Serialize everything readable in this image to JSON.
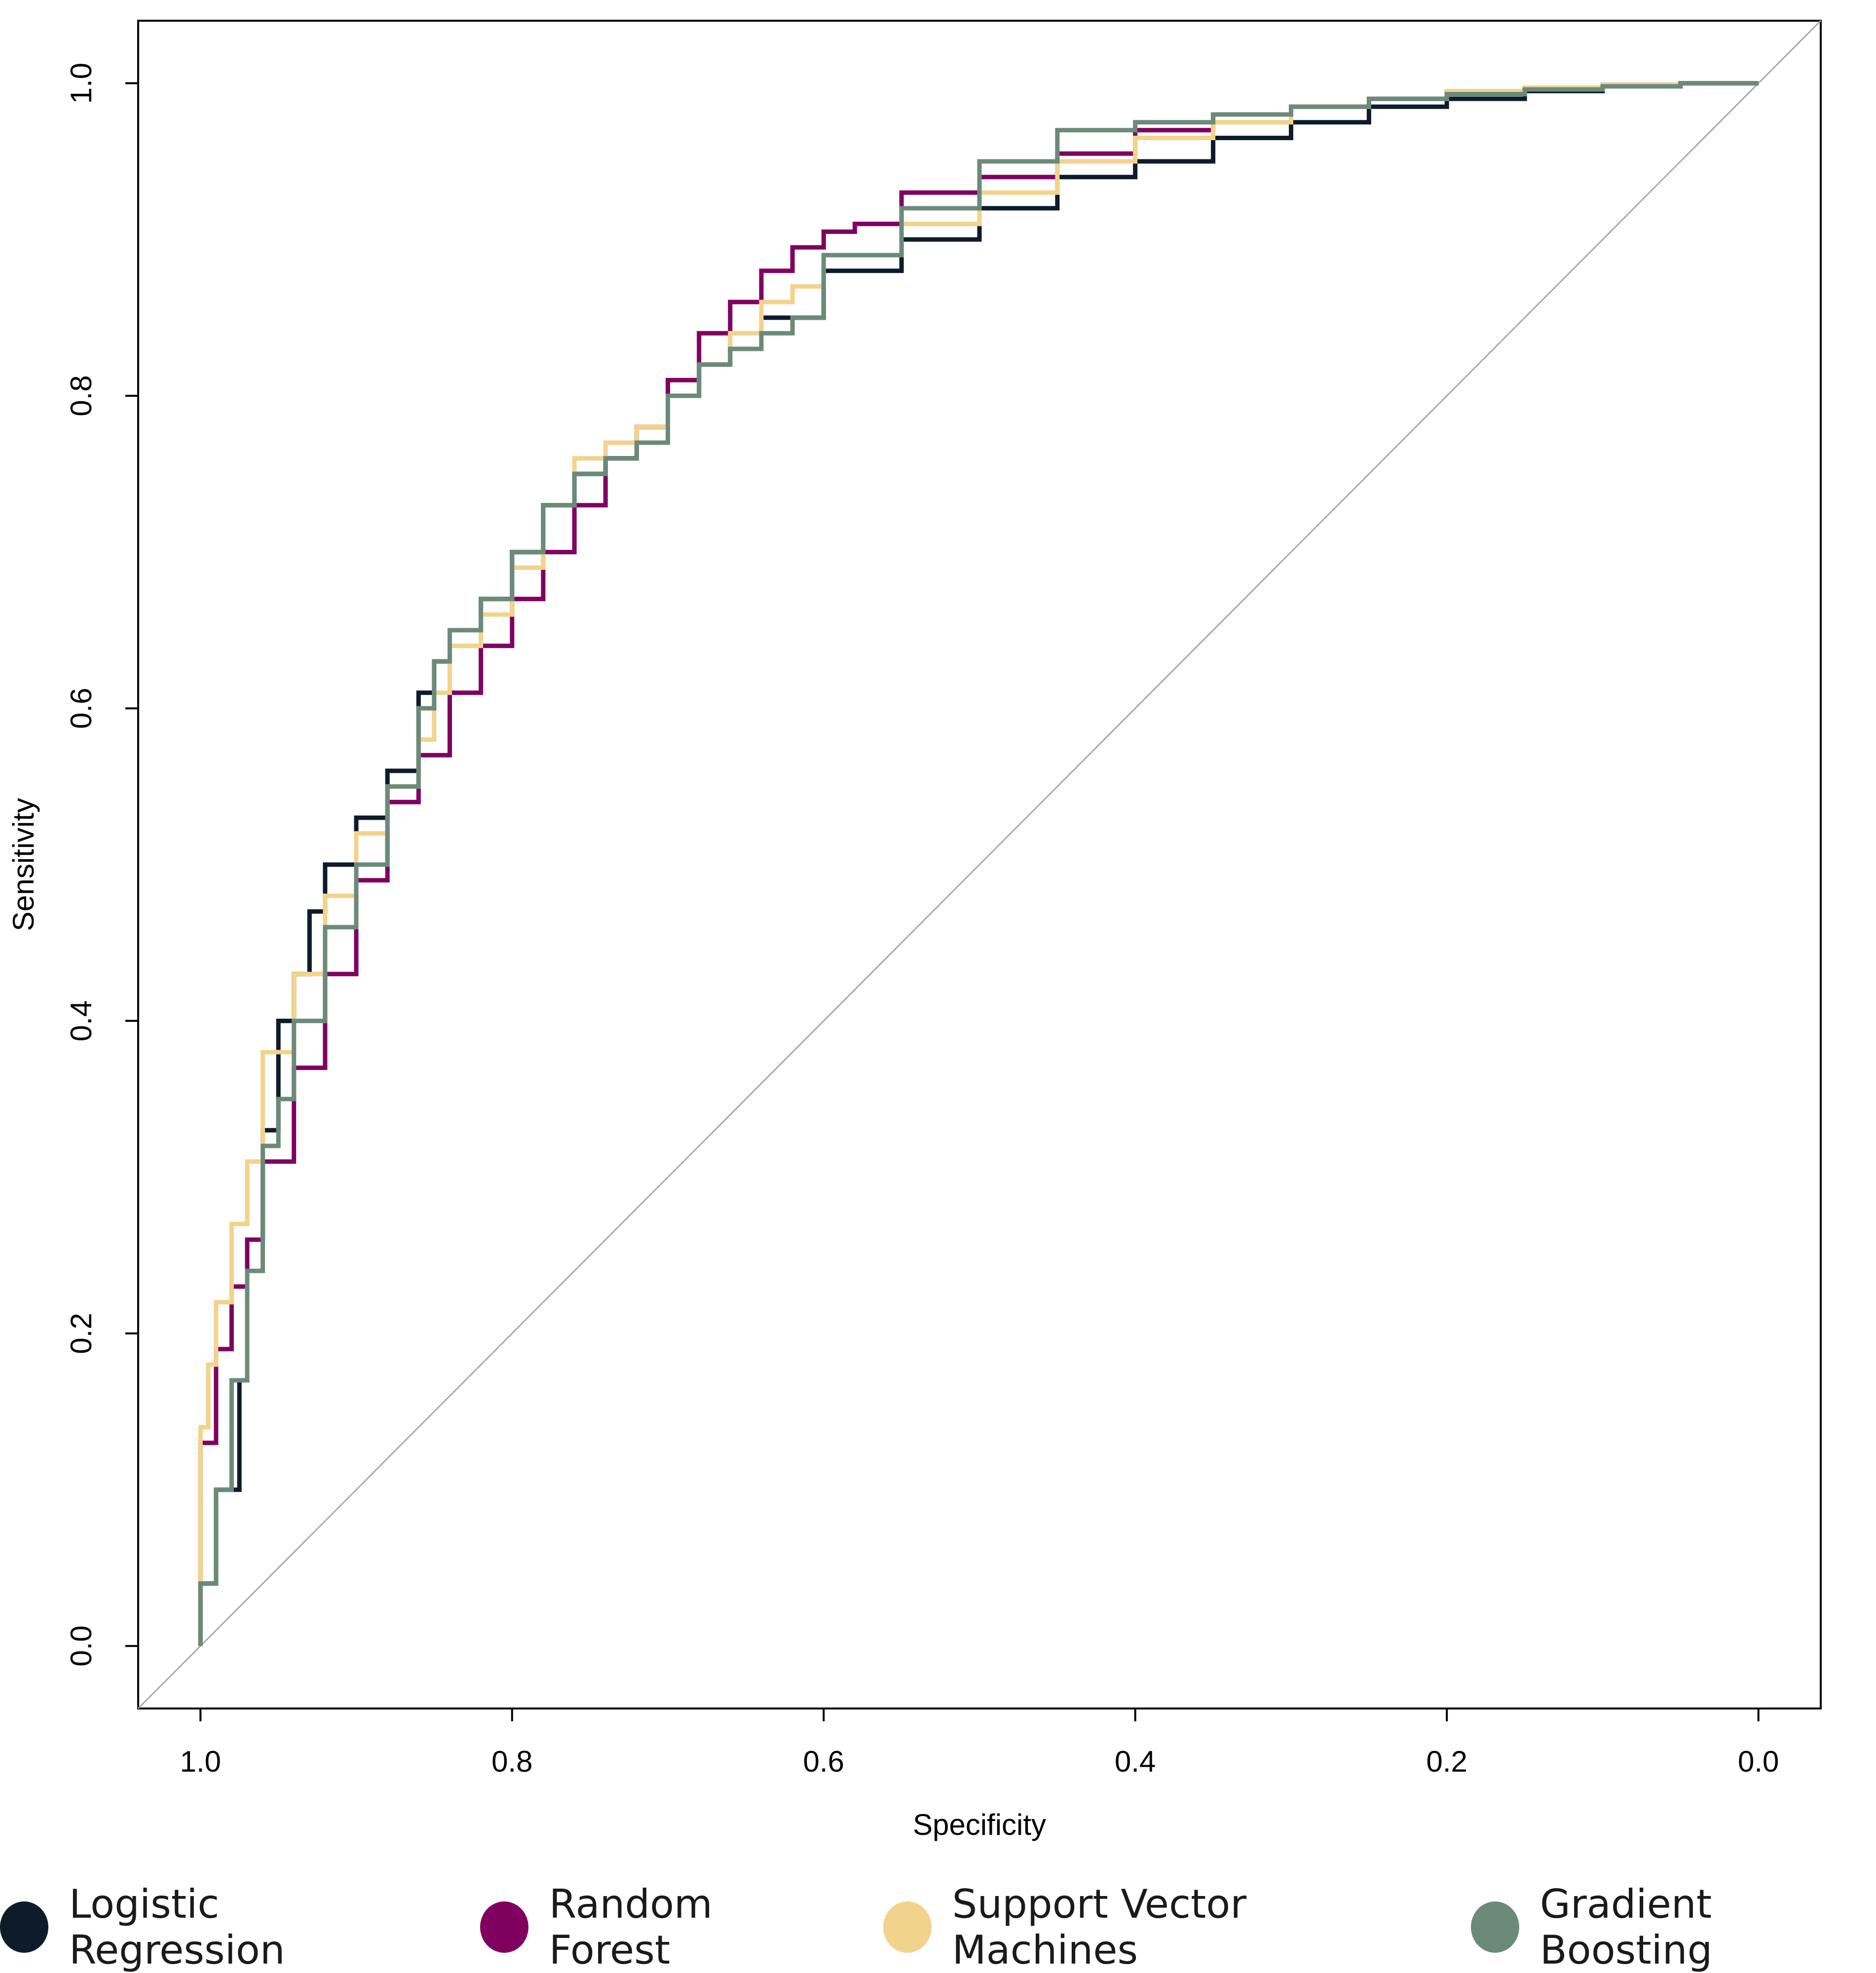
{
  "chart_data": {
    "type": "line",
    "title": "",
    "xlabel": "Specificity",
    "ylabel": "Sensitivity",
    "xlim": [
      1.04,
      -0.04
    ],
    "ylim": [
      -0.04,
      1.04
    ],
    "x_ticks": [
      "1.0",
      "0.8",
      "0.6",
      "0.4",
      "0.2",
      "0.0"
    ],
    "y_ticks": [
      "0.0",
      "0.2",
      "0.4",
      "0.6",
      "0.8",
      "1.0"
    ],
    "reference_line": {
      "from": [
        1.0,
        0.0
      ],
      "to": [
        0.0,
        1.0
      ],
      "color": "#aaaaaa"
    },
    "legend_position": "bottom",
    "series": [
      {
        "name": "Logistic Regression",
        "color": "#0d1b2a",
        "specificity": [
          1.0,
          0.99,
          0.975,
          0.97,
          0.96,
          0.95,
          0.94,
          0.93,
          0.92,
          0.9,
          0.88,
          0.86,
          0.85,
          0.84,
          0.82,
          0.8,
          0.78,
          0.76,
          0.74,
          0.72,
          0.7,
          0.68,
          0.66,
          0.64,
          0.6,
          0.55,
          0.5,
          0.45,
          0.4,
          0.35,
          0.3,
          0.25,
          0.2,
          0.15,
          0.1,
          0.05,
          0.0
        ],
        "sensitivity": [
          0.0,
          0.04,
          0.1,
          0.17,
          0.26,
          0.33,
          0.4,
          0.43,
          0.47,
          0.5,
          0.53,
          0.56,
          0.61,
          0.63,
          0.65,
          0.67,
          0.7,
          0.73,
          0.75,
          0.76,
          0.78,
          0.8,
          0.82,
          0.83,
          0.85,
          0.88,
          0.9,
          0.92,
          0.94,
          0.95,
          0.965,
          0.975,
          0.985,
          0.99,
          0.995,
          0.998,
          1.0
        ]
      },
      {
        "name": "Random Forest",
        "color": "#800060",
        "specificity": [
          1.0,
          0.99,
          0.98,
          0.97,
          0.96,
          0.94,
          0.92,
          0.9,
          0.88,
          0.86,
          0.84,
          0.82,
          0.8,
          0.78,
          0.76,
          0.74,
          0.72,
          0.7,
          0.68,
          0.66,
          0.64,
          0.62,
          0.6,
          0.58,
          0.55,
          0.5,
          0.45,
          0.4,
          0.35,
          0.3,
          0.25,
          0.2,
          0.15,
          0.1,
          0.05,
          0.0
        ],
        "sensitivity": [
          0.0,
          0.13,
          0.19,
          0.23,
          0.26,
          0.31,
          0.37,
          0.43,
          0.49,
          0.54,
          0.57,
          0.61,
          0.64,
          0.67,
          0.7,
          0.73,
          0.76,
          0.78,
          0.81,
          0.84,
          0.86,
          0.88,
          0.895,
          0.905,
          0.91,
          0.93,
          0.94,
          0.955,
          0.97,
          0.98,
          0.985,
          0.99,
          0.995,
          0.997,
          0.999,
          1.0
        ]
      },
      {
        "name": "Support Vector Machines",
        "color": "#f2d38c",
        "specificity": [
          1.0,
          0.995,
          0.99,
          0.98,
          0.97,
          0.96,
          0.94,
          0.92,
          0.9,
          0.88,
          0.86,
          0.85,
          0.84,
          0.82,
          0.8,
          0.78,
          0.76,
          0.74,
          0.72,
          0.7,
          0.68,
          0.66,
          0.64,
          0.62,
          0.6,
          0.55,
          0.5,
          0.45,
          0.4,
          0.35,
          0.3,
          0.25,
          0.2,
          0.15,
          0.1,
          0.05,
          0.0
        ],
        "sensitivity": [
          0.0,
          0.14,
          0.18,
          0.22,
          0.27,
          0.31,
          0.38,
          0.43,
          0.48,
          0.52,
          0.55,
          0.58,
          0.61,
          0.64,
          0.66,
          0.69,
          0.73,
          0.76,
          0.77,
          0.78,
          0.8,
          0.82,
          0.84,
          0.86,
          0.87,
          0.89,
          0.91,
          0.93,
          0.95,
          0.965,
          0.975,
          0.985,
          0.99,
          0.995,
          0.997,
          0.999,
          1.0
        ]
      },
      {
        "name": "Gradient Boosting",
        "color": "#6b8a7a",
        "specificity": [
          1.0,
          0.99,
          0.98,
          0.97,
          0.96,
          0.95,
          0.94,
          0.92,
          0.9,
          0.88,
          0.86,
          0.85,
          0.84,
          0.82,
          0.8,
          0.78,
          0.76,
          0.74,
          0.72,
          0.7,
          0.68,
          0.66,
          0.64,
          0.62,
          0.6,
          0.55,
          0.5,
          0.45,
          0.4,
          0.35,
          0.3,
          0.25,
          0.2,
          0.15,
          0.1,
          0.05,
          0.0
        ],
        "sensitivity": [
          0.0,
          0.04,
          0.1,
          0.17,
          0.24,
          0.32,
          0.35,
          0.4,
          0.46,
          0.5,
          0.55,
          0.6,
          0.63,
          0.65,
          0.67,
          0.7,
          0.73,
          0.75,
          0.76,
          0.77,
          0.8,
          0.82,
          0.83,
          0.84,
          0.85,
          0.89,
          0.92,
          0.95,
          0.97,
          0.975,
          0.98,
          0.985,
          0.99,
          0.993,
          0.996,
          0.998,
          1.0
        ]
      }
    ]
  }
}
